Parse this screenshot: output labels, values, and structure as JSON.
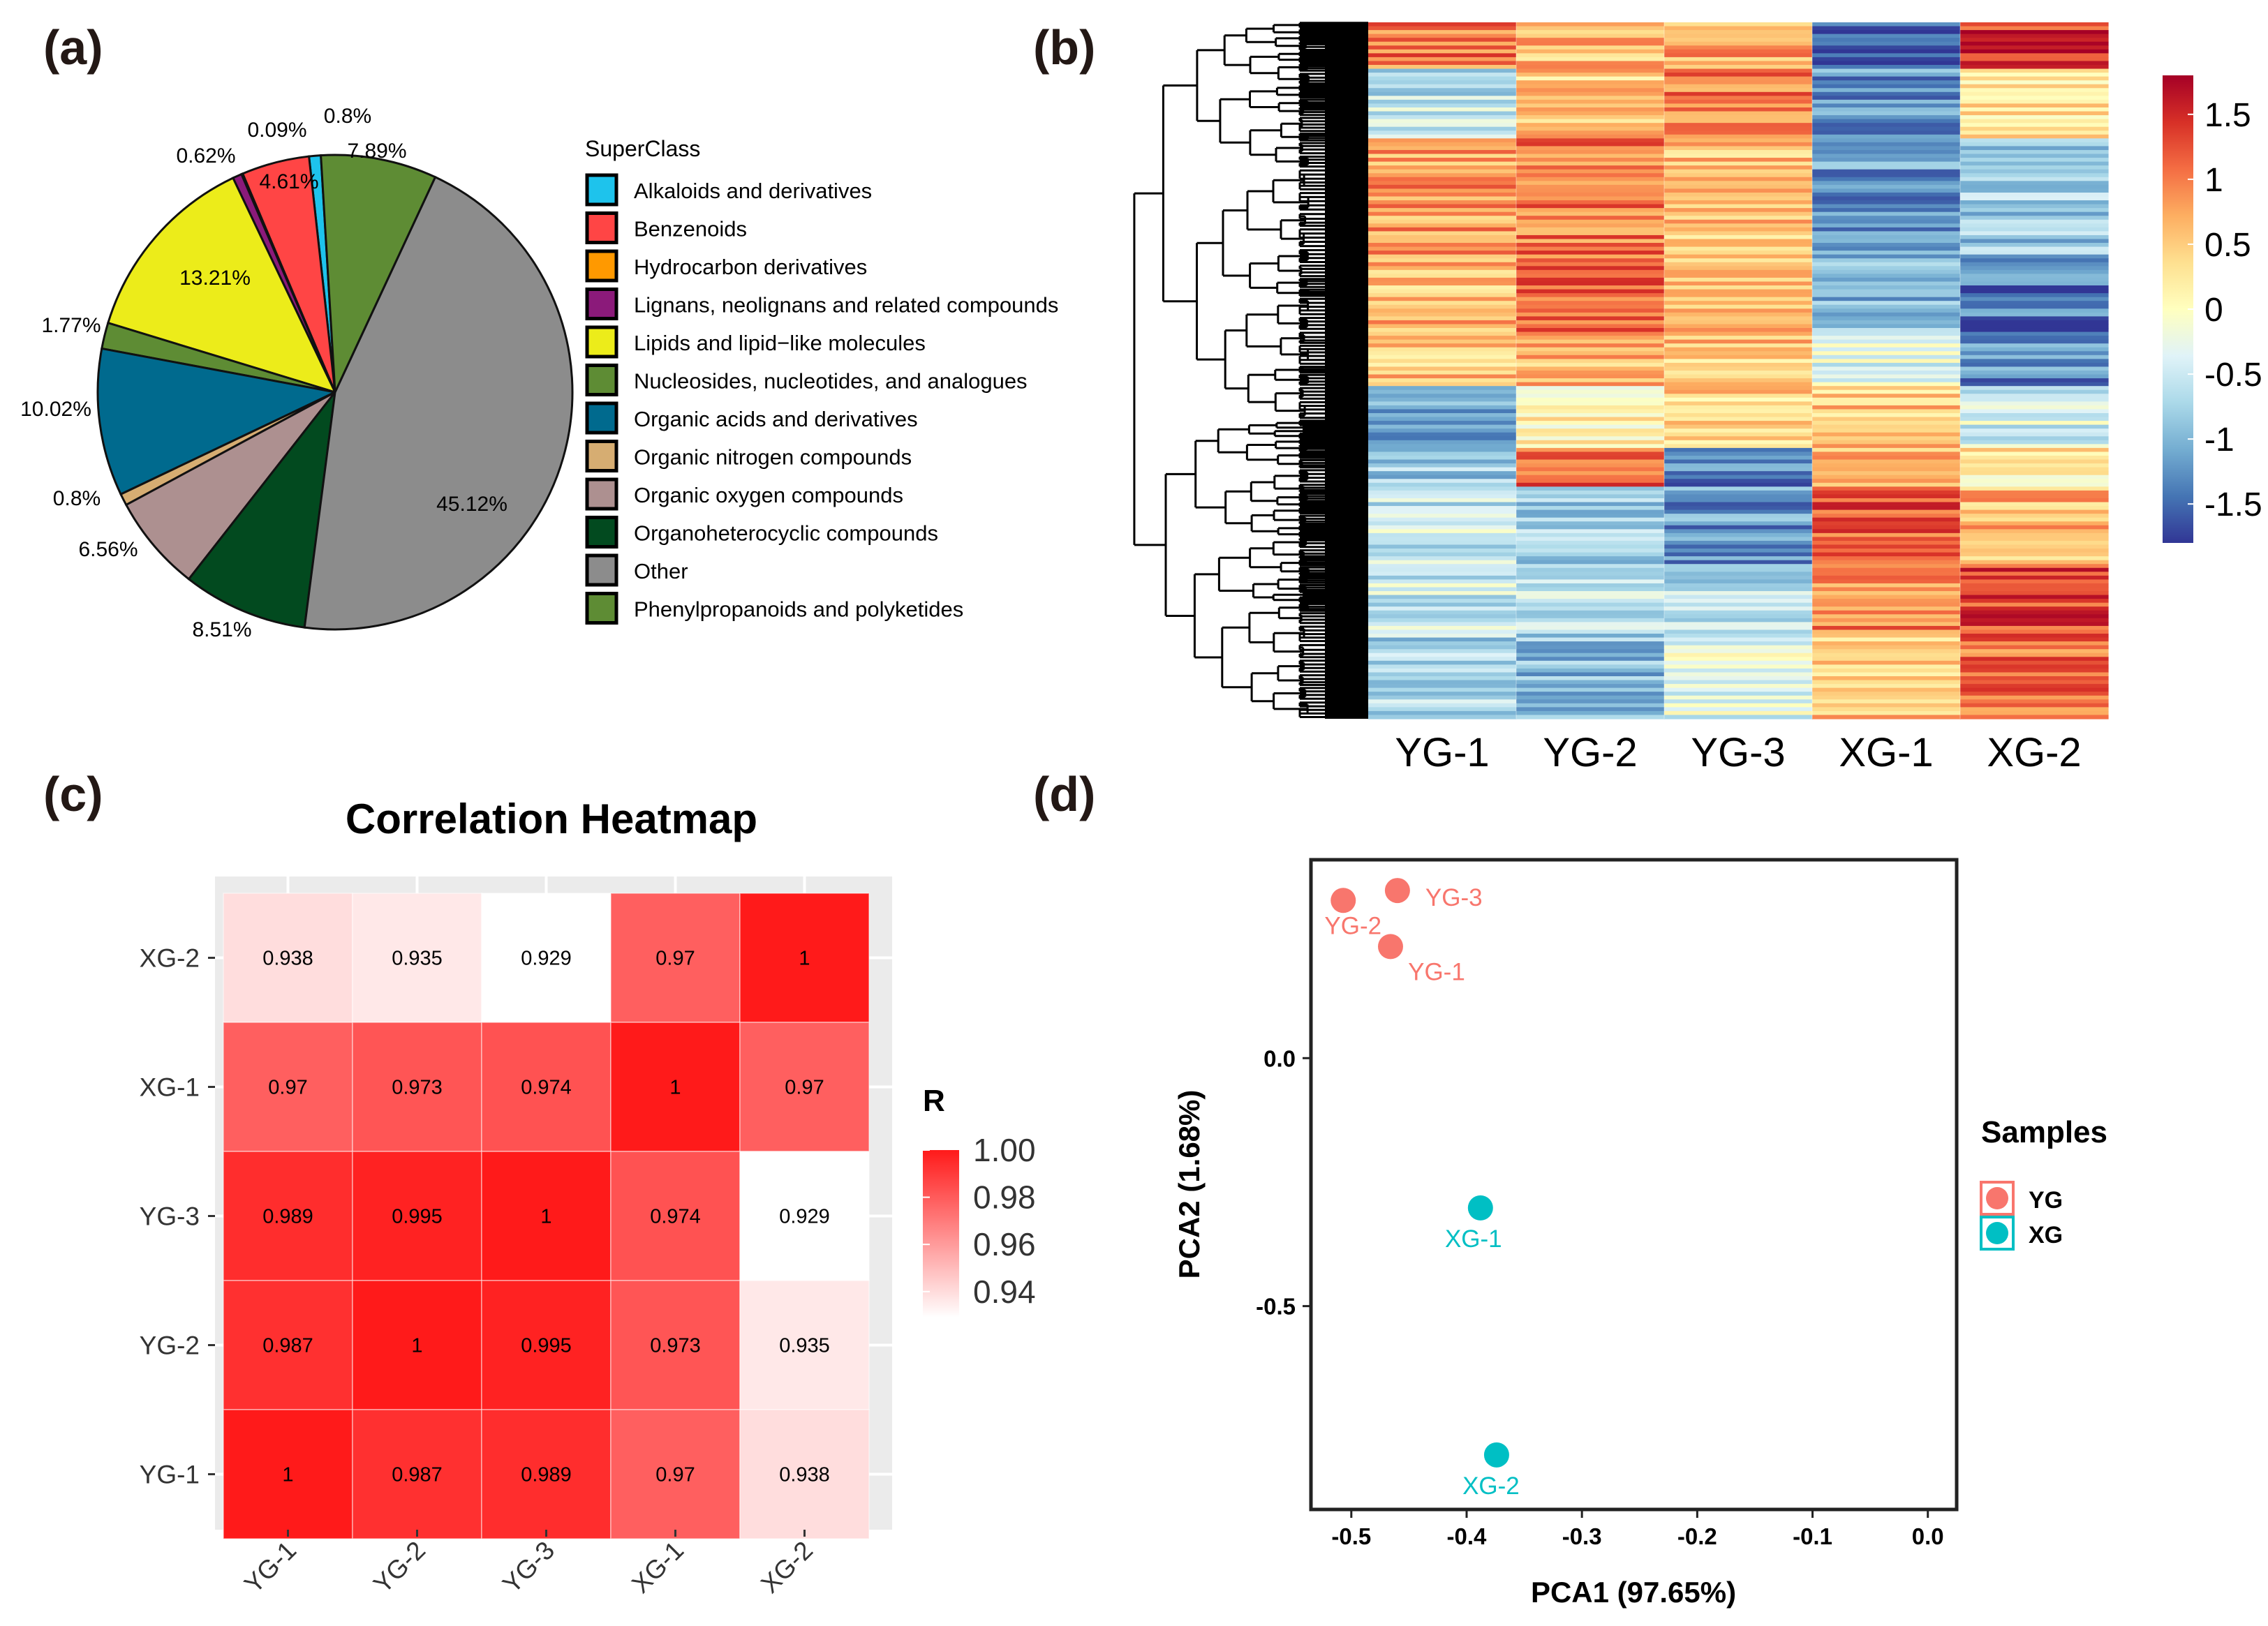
{
  "chart_data": [
    {
      "id": "a",
      "panel_label": "(a)",
      "type": "pie",
      "legend_title": "SuperClass",
      "slices": [
        {
          "label": "Alkaloids and derivatives",
          "value": 0.8,
          "display": "0.8%",
          "color": "#1ec3ec"
        },
        {
          "label": "Benzenoids",
          "value": 4.61,
          "display": "4.61%",
          "color": "#ff4545"
        },
        {
          "label": "Hydrocarbon derivatives",
          "value": 0.09,
          "display": "0.09%",
          "color": "#ff9900"
        },
        {
          "label": "Lignans, neolignans and related compounds",
          "value": 0.62,
          "display": "0.62%",
          "color": "#8b1a7a"
        },
        {
          "label": "Lipids and lipid−like molecules",
          "value": 13.21,
          "display": "13.21%",
          "color": "#ecec1a"
        },
        {
          "label": "Nucleosides, nucleotides, and analogues",
          "value": 1.77,
          "display": "1.77%",
          "color": "#5e8c34"
        },
        {
          "label": "Organic acids and derivatives",
          "value": 10.02,
          "display": "10.02%",
          "color": "#006a8e"
        },
        {
          "label": "Organic nitrogen compounds",
          "value": 0.8,
          "display": "0.8%",
          "color": "#d6ad72"
        },
        {
          "label": "Organic oxygen compounds",
          "value": 6.56,
          "display": "6.56%",
          "color": "#ad9090"
        },
        {
          "label": "Organoheterocyclic compounds",
          "value": 8.51,
          "display": "8.51%",
          "color": "#024a1f"
        },
        {
          "label": "Other",
          "value": 45.12,
          "display": "45.12%",
          "color": "#8c8c8c"
        },
        {
          "label": "Phenylpropanoids and polyketides",
          "value": 7.89,
          "display": "7.89%",
          "color": "#5e8c34"
        }
      ]
    },
    {
      "id": "b",
      "panel_label": "(b)",
      "type": "heatmap",
      "columns": [
        "YG-1",
        "YG-2",
        "YG-3",
        "XG-1",
        "XG-2"
      ],
      "colorbar_ticks": [
        1.5,
        1,
        0.5,
        0,
        -0.5,
        -1,
        -1.5
      ],
      "colorbar_tick_labels": [
        "1.5",
        "1",
        "0.5",
        "0",
        "-0.5",
        "-1",
        "-1.5"
      ],
      "value_range": [
        -1.8,
        1.8
      ],
      "color_scale": [
        "#313695",
        "#4575b4",
        "#74add1",
        "#abd9e9",
        "#e0f3f8",
        "#ffffbf",
        "#fee090",
        "#fdae61",
        "#f46d43",
        "#d73027",
        "#a50026"
      ],
      "approx_rows": 180,
      "row_blocks": [
        {
          "rows": 12,
          "values": [
            1.0,
            0.6,
            0.7,
            -1.5,
            1.4
          ]
        },
        {
          "rows": 18,
          "values": [
            -0.6,
            0.5,
            1.0,
            -1.2,
            0.3
          ]
        },
        {
          "rows": 30,
          "values": [
            0.8,
            1.0,
            0.6,
            -1.2,
            -0.8
          ]
        },
        {
          "rows": 20,
          "values": [
            0.6,
            1.1,
            0.6,
            -1.0,
            -1.4
          ]
        },
        {
          "rows": 14,
          "values": [
            0.5,
            0.6,
            0.5,
            -0.3,
            -1.3
          ]
        },
        {
          "rows": 16,
          "values": [
            -1.2,
            0.2,
            0.4,
            0.5,
            -0.4
          ]
        },
        {
          "rows": 10,
          "values": [
            -0.8,
            1.2,
            -1.3,
            0.6,
            0.2
          ]
        },
        {
          "rows": 20,
          "values": [
            -0.5,
            -0.8,
            -1.2,
            1.2,
            0.6
          ]
        },
        {
          "rows": 18,
          "values": [
            -0.5,
            -0.5,
            -0.6,
            0.9,
            1.3
          ]
        },
        {
          "rows": 22,
          "values": [
            -0.7,
            -0.9,
            -0.3,
            0.5,
            1.1
          ]
        }
      ]
    },
    {
      "id": "c",
      "panel_label": "(c)",
      "type": "heatmap",
      "title": "Correlation Heatmap",
      "x_labels": [
        "YG-1",
        "YG-2",
        "YG-3",
        "XG-1",
        "XG-2"
      ],
      "y_labels_top_to_bottom": [
        "XG-2",
        "XG-1",
        "YG-3",
        "YG-2",
        "YG-1"
      ],
      "matrix": [
        [
          0.938,
          0.935,
          0.929,
          0.97,
          1
        ],
        [
          0.97,
          0.973,
          0.974,
          1,
          0.97
        ],
        [
          0.989,
          0.995,
          1,
          0.974,
          0.929
        ],
        [
          0.987,
          1,
          0.995,
          0.973,
          0.935
        ],
        [
          1,
          0.987,
          0.989,
          0.97,
          0.938
        ]
      ],
      "cell_labels": [
        [
          "0.938",
          "0.935",
          "0.929",
          "0.97",
          "1"
        ],
        [
          "0.97",
          "0.973",
          "0.974",
          "1",
          "0.97"
        ],
        [
          "0.989",
          "0.995",
          "1",
          "0.974",
          "0.929"
        ],
        [
          "0.987",
          "1",
          "0.995",
          "0.973",
          "0.935"
        ],
        [
          "1",
          "0.987",
          "0.989",
          "0.97",
          "0.938"
        ]
      ],
      "legend_title": "R",
      "legend_ticks": [
        1.0,
        0.98,
        0.96,
        0.94
      ],
      "legend_tick_labels": [
        "1.00",
        "0.98",
        "0.96",
        "0.94"
      ],
      "value_range": [
        0.929,
        1.0
      ],
      "color_low": "#ffffff",
      "color_high": "#ff0000"
    },
    {
      "id": "d",
      "panel_label": "(d)",
      "type": "scatter",
      "xlabel": "PCA1 (97.65%)",
      "ylabel": "PCA2 (1.68%)",
      "xlim": [
        -0.535,
        0.025
      ],
      "ylim": [
        -0.91,
        0.4
      ],
      "x_ticks": [
        -0.5,
        -0.4,
        -0.3,
        -0.2,
        -0.1,
        0.0
      ],
      "x_tick_labels": [
        "-0.5",
        "-0.4",
        "-0.3",
        "-0.2",
        "-0.1",
        "0.0"
      ],
      "y_ticks": [
        0.0,
        -0.5
      ],
      "y_tick_labels": [
        "0.0",
        "-0.5"
      ],
      "legend_title": "Samples",
      "groups": [
        {
          "name": "YG",
          "color": "#f8766d"
        },
        {
          "name": "XG",
          "color": "#00bfc4"
        }
      ],
      "points": [
        {
          "label": "YG-1",
          "group": "YG",
          "x": -0.466,
          "y": 0.225
        },
        {
          "label": "YG-2",
          "group": "YG",
          "x": -0.507,
          "y": 0.318
        },
        {
          "label": "YG-3",
          "group": "YG",
          "x": -0.46,
          "y": 0.338
        },
        {
          "label": "XG-1",
          "group": "XG",
          "x": -0.388,
          "y": -0.302
        },
        {
          "label": "XG-2",
          "group": "XG",
          "x": -0.374,
          "y": -0.8
        }
      ]
    }
  ]
}
